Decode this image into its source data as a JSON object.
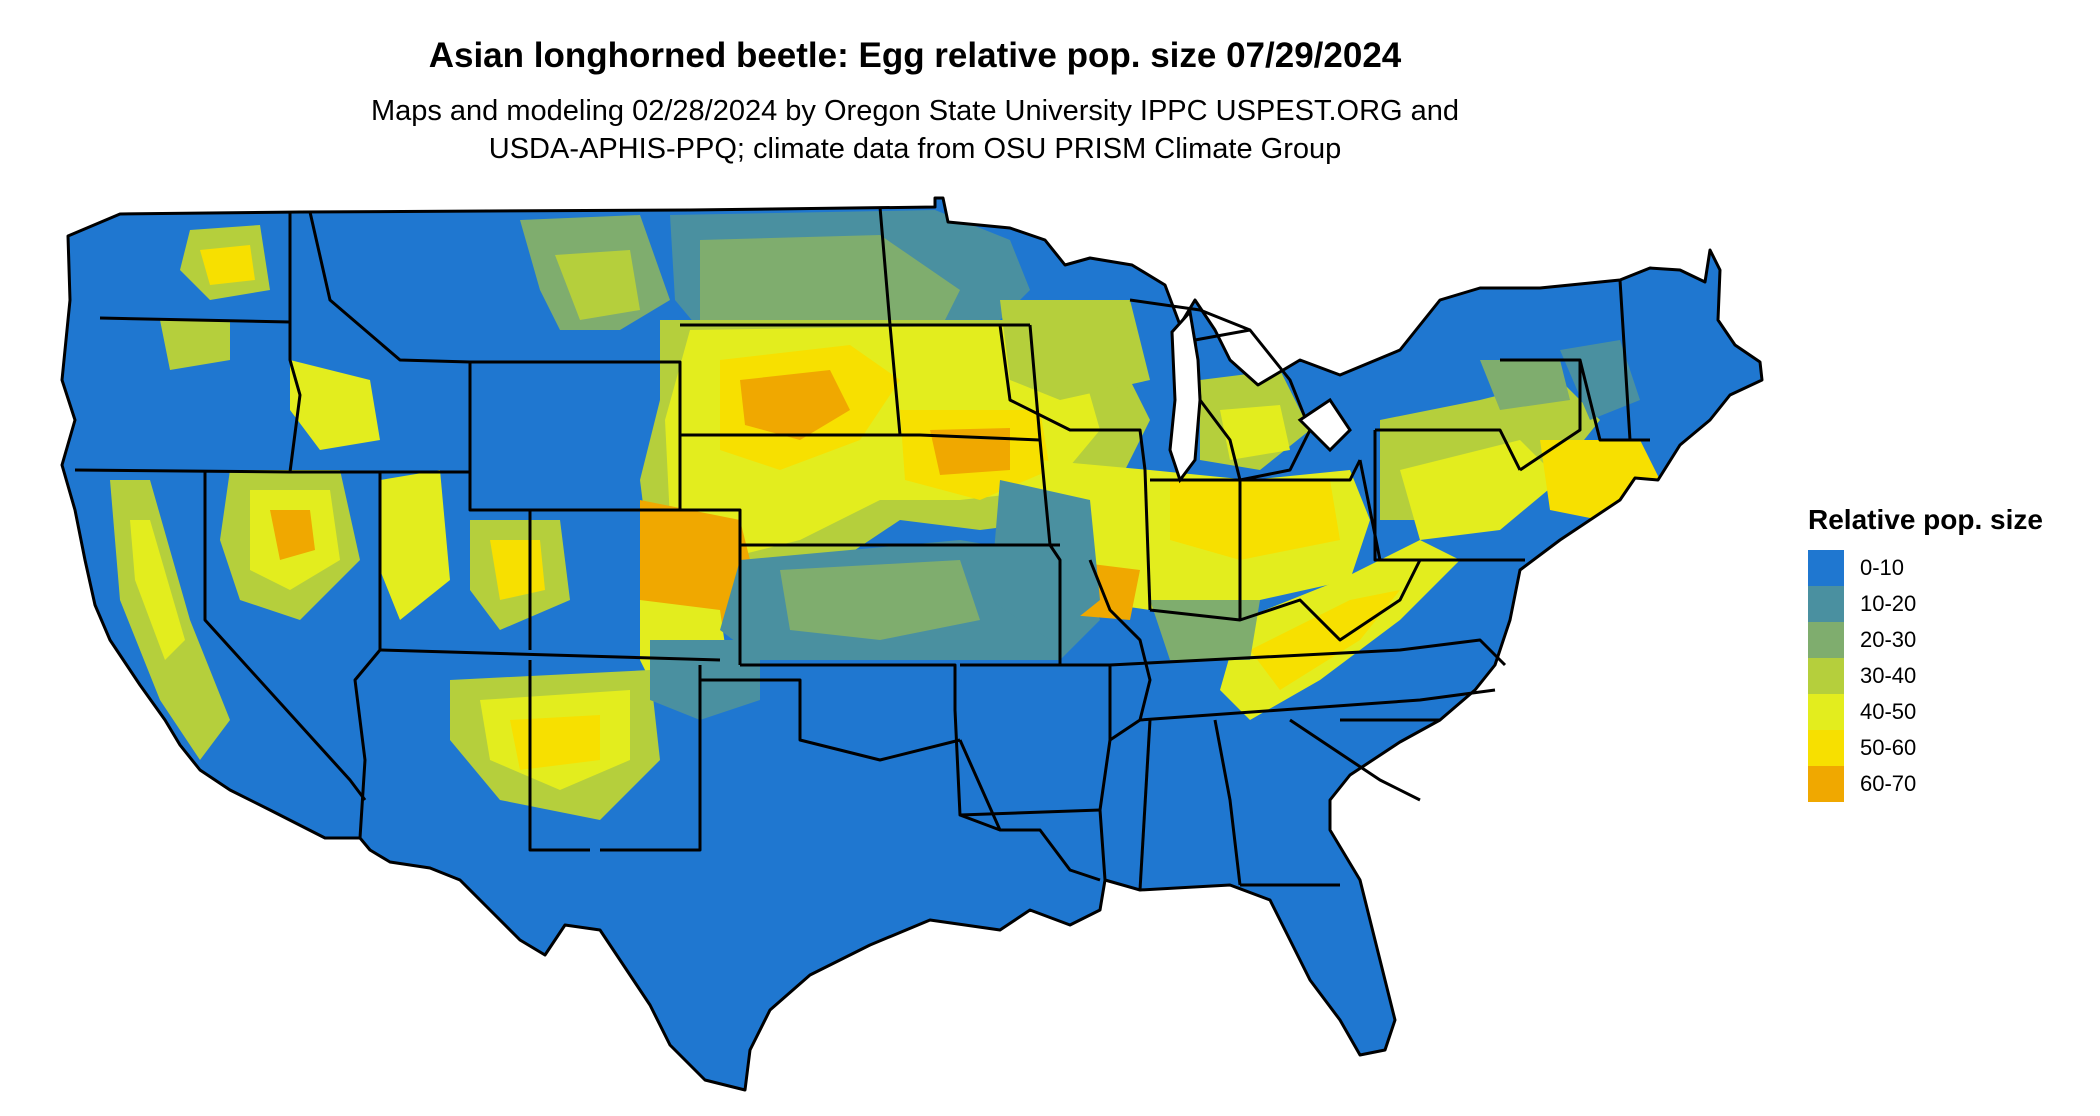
{
  "title": "Asian longhorned beetle: Egg relative pop. size 07/29/2024",
  "subtitle_lines": [
    "Maps and modeling 02/28/2024 by Oregon State University IPPC USPEST.ORG and",
    "USDA-APHIS-PPQ; climate data from OSU PRISM Climate Group"
  ],
  "legend": {
    "title": "Relative pop. size",
    "items": [
      {
        "label": "0-10",
        "color": "#1f77d0"
      },
      {
        "label": "10-20",
        "color": "#4a90a0"
      },
      {
        "label": "20-30",
        "color": "#7fad6e"
      },
      {
        "label": "30-40",
        "color": "#b5cf3c"
      },
      {
        "label": "40-50",
        "color": "#e3ed1e"
      },
      {
        "label": "50-60",
        "color": "#f7e000"
      },
      {
        "label": "60-70",
        "color": "#f0a800"
      }
    ]
  },
  "map": {
    "region": "Contiguous United States",
    "background_class": "0-10",
    "colors": {
      "border": "#000000",
      "base": "#1f77d0"
    }
  }
}
